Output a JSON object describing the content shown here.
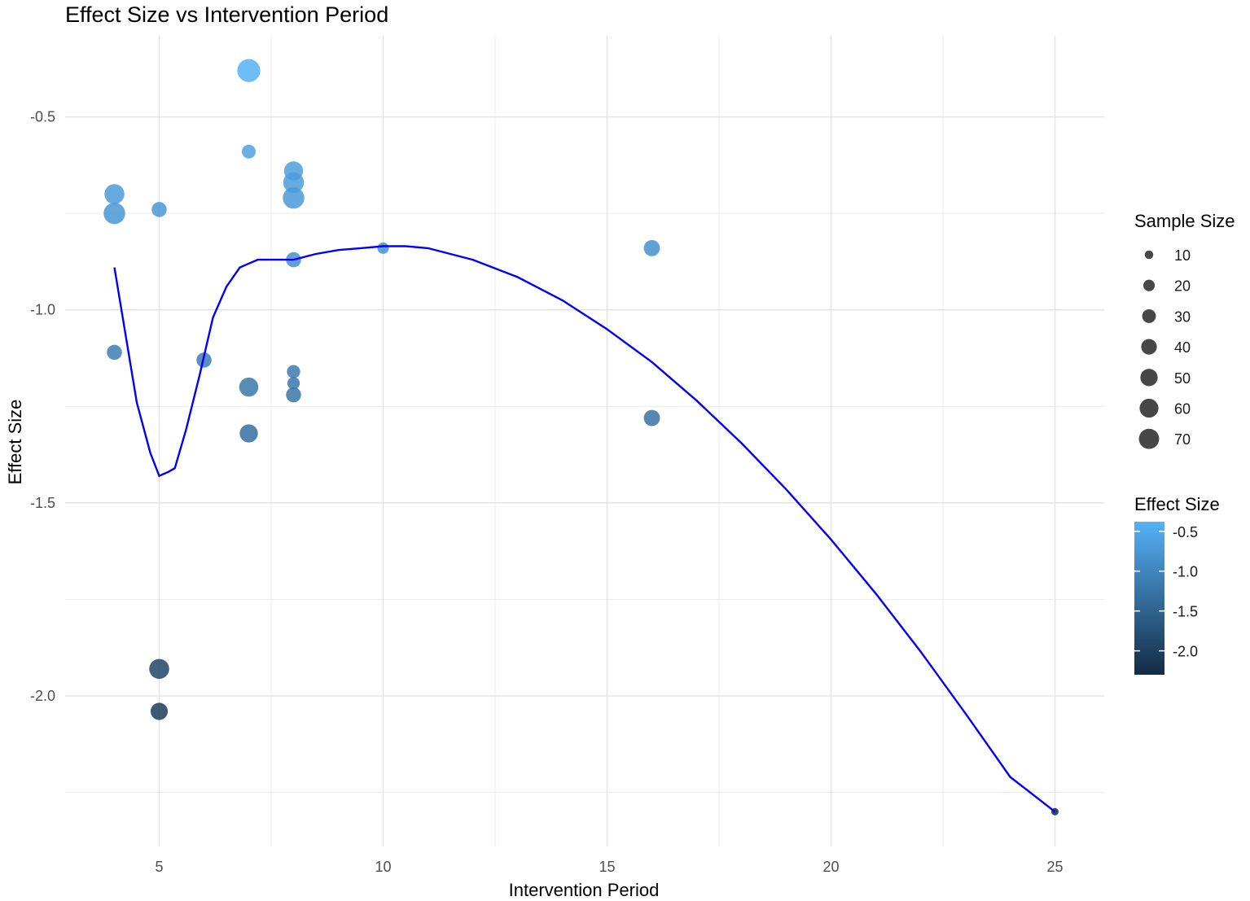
{
  "chart_data": {
    "type": "scatter",
    "title": "Effect Size vs Intervention Period",
    "xlabel": "Intervention Period",
    "ylabel": "Effect Size",
    "xlim": [
      2.9,
      26.1
    ],
    "ylim": [
      -2.39,
      -0.29
    ],
    "x_ticks": [
      5,
      10,
      15,
      20,
      25
    ],
    "x_tick_labels": [
      "5",
      "10",
      "15",
      "20",
      "25"
    ],
    "y_ticks": [
      -0.5,
      -1.0,
      -1.5,
      -2.0
    ],
    "y_tick_labels": [
      "-0.5",
      "-1.0",
      "-1.5",
      "-2.0"
    ],
    "grid": true,
    "legend_position": "right",
    "points": [
      {
        "x": 4,
        "y": -0.7,
        "size": 50
      },
      {
        "x": 4,
        "y": -0.75,
        "size": 60
      },
      {
        "x": 4,
        "y": -1.11,
        "size": 25
      },
      {
        "x": 5,
        "y": -0.74,
        "size": 25
      },
      {
        "x": 5,
        "y": -1.93,
        "size": 50
      },
      {
        "x": 5,
        "y": -2.04,
        "size": 35
      },
      {
        "x": 6,
        "y": -1.13,
        "size": 25
      },
      {
        "x": 7,
        "y": -0.38,
        "size": 70
      },
      {
        "x": 7,
        "y": -0.59,
        "size": 20
      },
      {
        "x": 7,
        "y": -1.2,
        "size": 45
      },
      {
        "x": 7,
        "y": -1.32,
        "size": 40
      },
      {
        "x": 8,
        "y": -0.64,
        "size": 45
      },
      {
        "x": 8,
        "y": -0.67,
        "size": 55
      },
      {
        "x": 8,
        "y": -0.71,
        "size": 60
      },
      {
        "x": 8,
        "y": -0.87,
        "size": 25
      },
      {
        "x": 8,
        "y": -1.16,
        "size": 18
      },
      {
        "x": 8,
        "y": -1.19,
        "size": 15
      },
      {
        "x": 8,
        "y": -1.22,
        "size": 25
      },
      {
        "x": 10,
        "y": -0.84,
        "size": 12
      },
      {
        "x": 16,
        "y": -0.84,
        "size": 30
      },
      {
        "x": 16,
        "y": -1.28,
        "size": 30
      },
      {
        "x": 25,
        "y": -2.3,
        "size": 3
      }
    ],
    "smooth_line": {
      "color": "#0000ff",
      "x": [
        4,
        4.5,
        4.8,
        5,
        5.2,
        5.35,
        5.6,
        5.9,
        6.2,
        6.5,
        6.8,
        7,
        7.2,
        7.6,
        8,
        8.5,
        9,
        9.5,
        10,
        10.5,
        11,
        12,
        13,
        14,
        15,
        16,
        17,
        18,
        19,
        20,
        21,
        22,
        23,
        24,
        25
      ],
      "y": [
        -0.89,
        -1.24,
        -1.37,
        -1.43,
        -1.42,
        -1.41,
        -1.31,
        -1.17,
        -1.02,
        -0.94,
        -0.89,
        -0.88,
        -0.87,
        -0.87,
        -0.87,
        -0.855,
        -0.845,
        -0.84,
        -0.835,
        -0.835,
        -0.84,
        -0.87,
        -0.915,
        -0.975,
        -1.05,
        -1.135,
        -1.235,
        -1.345,
        -1.465,
        -1.595,
        -1.735,
        -1.885,
        -2.045,
        -2.21,
        -2.3
      ]
    },
    "legend_size": {
      "title": "Sample Size",
      "values": [
        10,
        20,
        30,
        40,
        50,
        60,
        70
      ],
      "labels": [
        "10",
        "20",
        "30",
        "40",
        "50",
        "60",
        "70"
      ]
    },
    "legend_color": {
      "title": "Effect Size",
      "color_low": "#132b43",
      "color_high": "#56b1f7",
      "range": [
        -2.3,
        -0.38
      ],
      "ticks": [
        -0.5,
        -1.0,
        -1.5,
        -2.0
      ],
      "tick_labels": [
        "-0.5",
        "-1.0",
        "-1.5",
        "-2.0"
      ]
    },
    "point_opacity": 0.85
  }
}
